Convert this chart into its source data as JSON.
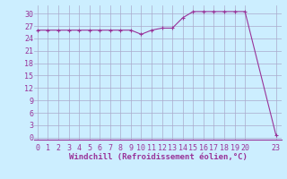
{
  "x": [
    0,
    1,
    2,
    3,
    4,
    5,
    6,
    7,
    8,
    9,
    10,
    11,
    12,
    13,
    14,
    15,
    16,
    17,
    18,
    19,
    20,
    23
  ],
  "y": [
    26,
    26,
    26,
    26,
    26,
    26,
    26,
    26,
    26,
    26,
    25,
    26,
    26.5,
    26.5,
    29,
    30.5,
    30.5,
    30.5,
    30.5,
    30.5,
    30.5,
    0.5
  ],
  "line_color": "#993399",
  "marker": "+",
  "marker_color": "#993399",
  "bg_color": "#cceeff",
  "grid_color": "#aaaacc",
  "xlabel": "Windchill (Refroidissement éolien,°C)",
  "xlabel_color": "#993399",
  "ylabel_ticks": [
    0,
    3,
    6,
    9,
    12,
    15,
    18,
    21,
    24,
    27,
    30
  ],
  "xtick_positions": [
    0,
    1,
    2,
    3,
    4,
    5,
    6,
    7,
    8,
    9,
    10,
    11,
    12,
    13,
    14,
    15,
    16,
    17,
    18,
    19,
    20,
    23
  ],
  "xtick_labels": [
    "0",
    "1",
    "2",
    "3",
    "4",
    "5",
    "6",
    "7",
    "8",
    "9",
    "10",
    "11",
    "12",
    "13",
    "14",
    "15",
    "16",
    "17",
    "18",
    "19",
    "20",
    "23"
  ],
  "xlim": [
    -0.3,
    23.5
  ],
  "ylim": [
    -0.5,
    32
  ],
  "tick_fontsize": 6,
  "xlabel_fontsize": 6.5,
  "tick_color": "#993399",
  "spine_color": "#993399"
}
